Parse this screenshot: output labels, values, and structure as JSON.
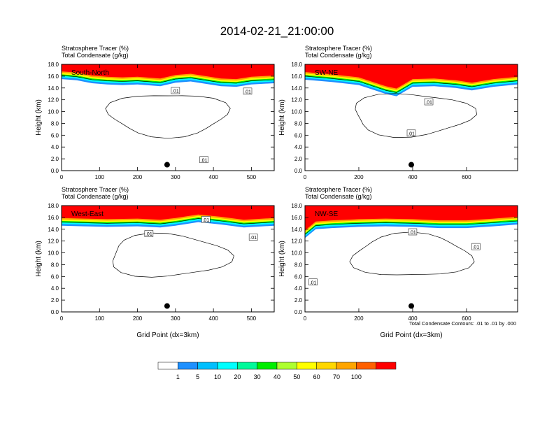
{
  "title": "2014-02-21_21:00:00",
  "footnote": "Total Condensate Contours: .01 to .01 by .000",
  "contour_label": ".01",
  "colors": [
    "#ffffff",
    "#1e90ff",
    "#00bfff",
    "#00ffff",
    "#00fa9a",
    "#00ee00",
    "#adff2f",
    "#ffff00",
    "#ffd700",
    "#ffa500",
    "#ff6000",
    "#ff0000"
  ],
  "colorbar": {
    "labels": [
      "1",
      "5",
      "10",
      "20",
      "30",
      "40",
      "50",
      "60",
      "70",
      "100"
    ]
  },
  "chart_data": [
    {
      "type": "heatmap",
      "panel_label": "South-North",
      "header_lines": [
        "Stratosphere Tracer   (%)",
        "Total Condensate   (g/kg)"
      ],
      "ylabel": "Height (km)",
      "xlabel": "",
      "xlim": [
        0,
        560
      ],
      "ylim": [
        0,
        18
      ],
      "x_ticks": [
        "0",
        "100",
        "200",
        "300",
        "400",
        "500"
      ],
      "y_ticks": [
        "0.0",
        "2.0",
        "4.0",
        "6.0",
        "8.0",
        "10.0",
        "12.0",
        "14.0",
        "16.0",
        "18.0"
      ],
      "tracer_boundary_km": [
        [
          0,
          15.5
        ],
        [
          40,
          15.3
        ],
        [
          80,
          14.8
        ],
        [
          120,
          14.6
        ],
        [
          160,
          14.5
        ],
        [
          200,
          14.6
        ],
        [
          260,
          14.3
        ],
        [
          300,
          14.9
        ],
        [
          340,
          15.1
        ],
        [
          380,
          14.7
        ],
        [
          420,
          14.3
        ],
        [
          460,
          14.2
        ],
        [
          500,
          14.6
        ],
        [
          560,
          14.8
        ]
      ],
      "contour_label_positions": [
        [
          300,
          13.5
        ],
        [
          375,
          1.8
        ],
        [
          490,
          13.4
        ]
      ],
      "marker": [
        278,
        1.0
      ]
    },
    {
      "type": "heatmap",
      "panel_label": "SW-NE",
      "header_lines": [
        "Stratosphere Tracer   (%)",
        "Total Condensate   (g/kg)"
      ],
      "ylabel": "Height (km)",
      "xlabel": "",
      "xlim": [
        0,
        790
      ],
      "ylim": [
        0,
        18
      ],
      "x_ticks": [
        "0",
        "200",
        "400",
        "600"
      ],
      "y_ticks": [
        "0.0",
        "2.0",
        "4.0",
        "6.0",
        "8.0",
        "10.0",
        "12.0",
        "14.0",
        "16.0",
        "18.0"
      ],
      "tracer_boundary_km": [
        [
          0,
          15.4
        ],
        [
          100,
          15.0
        ],
        [
          200,
          14.5
        ],
        [
          300,
          13.0
        ],
        [
          340,
          12.6
        ],
        [
          400,
          14.2
        ],
        [
          480,
          14.3
        ],
        [
          560,
          14.0
        ],
        [
          620,
          13.6
        ],
        [
          700,
          14.2
        ],
        [
          790,
          14.6
        ]
      ],
      "contour_label_positions": [
        [
          395,
          6.3
        ],
        [
          460,
          11.6
        ]
      ],
      "marker": [
        395,
        1.0
      ]
    },
    {
      "type": "heatmap",
      "panel_label": "West-East",
      "header_lines": [
        "Stratosphere Tracer   (%)",
        "Total Condensate   (g/kg)"
      ],
      "ylabel": "Height (km)",
      "xlabel": "Grid Point (dx=3km)",
      "xlim": [
        0,
        560
      ],
      "ylim": [
        0,
        18
      ],
      "x_ticks": [
        "0",
        "100",
        "200",
        "300",
        "400",
        "500"
      ],
      "y_ticks": [
        "0.0",
        "2.0",
        "4.0",
        "6.0",
        "8.0",
        "10.0",
        "12.0",
        "14.0",
        "16.0",
        "18.0"
      ],
      "tracer_boundary_km": [
        [
          0,
          14.6
        ],
        [
          60,
          14.5
        ],
        [
          120,
          14.4
        ],
        [
          200,
          14.5
        ],
        [
          260,
          14.3
        ],
        [
          300,
          14.6
        ],
        [
          360,
          15.2
        ],
        [
          420,
          14.8
        ],
        [
          480,
          14.3
        ],
        [
          560,
          14.6
        ]
      ],
      "contour_label_positions": [
        [
          230,
          13.2
        ],
        [
          380,
          15.6
        ],
        [
          505,
          12.6
        ]
      ],
      "marker": [
        278,
        1.0
      ]
    },
    {
      "type": "heatmap",
      "panel_label": "NW-SE",
      "header_lines": [
        "Stratosphere Tracer   (%)",
        "Total Condensate   (g/kg)"
      ],
      "ylabel": "Height (km)",
      "xlabel": "Grid Point (dx=3km)",
      "xlim": [
        0,
        790
      ],
      "ylim": [
        0,
        18
      ],
      "x_ticks": [
        "0",
        "200",
        "400",
        "600"
      ],
      "y_ticks": [
        "0.0",
        "2.0",
        "4.0",
        "6.0",
        "8.0",
        "10.0",
        "12.0",
        "14.0",
        "16.0",
        "18.0"
      ],
      "tracer_boundary_km": [
        [
          0,
          12.5
        ],
        [
          40,
          14.0
        ],
        [
          100,
          14.2
        ],
        [
          200,
          14.4
        ],
        [
          300,
          14.5
        ],
        [
          400,
          14.4
        ],
        [
          500,
          14.2
        ],
        [
          600,
          14.2
        ],
        [
          700,
          14.5
        ],
        [
          790,
          14.8
        ]
      ],
      "contour_label_positions": [
        [
          30,
          5.0
        ],
        [
          400,
          13.5
        ],
        [
          635,
          11.0
        ]
      ],
      "marker": [
        395,
        1.0
      ]
    }
  ]
}
